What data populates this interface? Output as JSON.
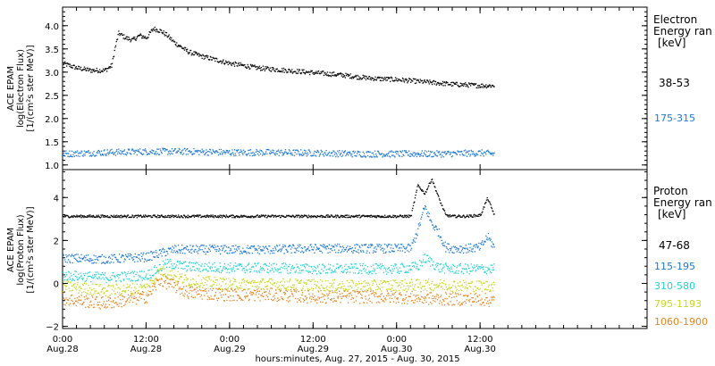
{
  "chart_data": [
    {
      "type": "scatter",
      "panel": "electron",
      "ylabel": "ACE EPAM\nlog(Electron Flux)\n[1/(cm^2 s ster MeV)]",
      "ylabel_lines": [
        "ACE EPAM",
        "log(Electron Flux)",
        "[1/(cm²s ster MeV)]"
      ],
      "ylim": [
        0.9,
        4.4
      ],
      "yticks": [
        1.0,
        1.5,
        2.0,
        2.5,
        3.0,
        3.5,
        4.0
      ],
      "ytick_labels": [
        "1.0",
        "1.5",
        "2.0",
        "2.5",
        "3.0",
        "3.5",
        "4.0"
      ],
      "legend_title": [
        "Electron",
        "Energy ran",
        "[keV]"
      ],
      "series": [
        {
          "name": "38-53",
          "color": "#000000",
          "x_hours": [
            0,
            2,
            4,
            6,
            7,
            7.5,
            8,
            9,
            10,
            11,
            12,
            13,
            14,
            15,
            16,
            18,
            20,
            24,
            28,
            32,
            36,
            40,
            44,
            48,
            52,
            56,
            60,
            62
          ],
          "values": [
            3.2,
            3.1,
            3.05,
            3.05,
            3.15,
            3.55,
            3.85,
            3.75,
            3.7,
            3.8,
            3.75,
            3.95,
            3.9,
            3.8,
            3.65,
            3.45,
            3.35,
            3.2,
            3.1,
            3.05,
            3.0,
            2.95,
            2.88,
            2.85,
            2.8,
            2.75,
            2.72,
            2.72
          ]
        },
        {
          "name": "175-315",
          "color": "#1e78d2",
          "x_hours": [
            0,
            6,
            12,
            18,
            24,
            30,
            36,
            42,
            48,
            54,
            60,
            62
          ],
          "values": [
            1.25,
            1.28,
            1.3,
            1.3,
            1.28,
            1.28,
            1.27,
            1.25,
            1.25,
            1.25,
            1.27,
            1.25
          ]
        }
      ]
    },
    {
      "type": "scatter",
      "panel": "proton",
      "ylabel": "ACE EPAM\nlog(Proton Flux)\n[1/(cm^2 s ster MeV)]",
      "ylabel_lines": [
        "ACE EPAM",
        "log(Proton Flux)",
        "[1/(cm²s ster MeV)]"
      ],
      "ylim": [
        -2.1,
        5.3
      ],
      "yticks": [
        -2,
        0,
        2,
        4
      ],
      "ytick_labels": [
        "−2",
        "0",
        "2",
        "4"
      ],
      "legend_title": [
        "Proton",
        "Energy ran",
        "[keV]"
      ],
      "series": [
        {
          "name": "47-68",
          "color": "#000000",
          "x_hours": [
            0,
            10,
            20,
            30,
            40,
            46,
            48,
            50,
            51,
            52,
            53,
            54,
            55,
            56,
            58,
            60,
            61,
            62
          ],
          "values": [
            3.15,
            3.15,
            3.15,
            3.15,
            3.15,
            3.15,
            3.15,
            3.15,
            4.6,
            4.2,
            4.9,
            4.0,
            3.2,
            3.15,
            3.15,
            3.2,
            4.0,
            3.2
          ]
        },
        {
          "name": "115-195",
          "color": "#1e78d2",
          "x_hours": [
            0,
            6,
            12,
            16,
            20,
            24,
            30,
            36,
            42,
            48,
            50,
            51,
            52,
            53,
            54,
            55,
            56,
            58,
            60,
            61,
            62
          ],
          "values": [
            1.2,
            1.15,
            1.25,
            1.6,
            1.6,
            1.6,
            1.6,
            1.65,
            1.65,
            1.65,
            1.65,
            2.5,
            3.6,
            2.8,
            2.4,
            1.7,
            1.65,
            1.65,
            1.7,
            2.2,
            1.7
          ]
        },
        {
          "name": "310-580",
          "color": "#22d4d0",
          "x_hours": [
            0,
            6,
            12,
            15,
            18,
            24,
            30,
            36,
            42,
            48,
            51,
            52,
            53,
            54,
            56,
            60,
            62
          ],
          "values": [
            0.4,
            0.3,
            0.4,
            0.95,
            0.8,
            0.75,
            0.75,
            0.7,
            0.7,
            0.7,
            0.8,
            1.2,
            1.0,
            0.75,
            0.7,
            0.7,
            0.7
          ]
        },
        {
          "name": "795-1193",
          "color": "#c8d81e",
          "x_hours": [
            0,
            6,
            12,
            14,
            18,
            24,
            30,
            36,
            42,
            48,
            54,
            60,
            62
          ],
          "values": [
            -0.1,
            -0.3,
            -0.2,
            0.6,
            0.15,
            0.0,
            0.0,
            -0.05,
            -0.1,
            -0.05,
            -0.05,
            -0.1,
            -0.1
          ]
        },
        {
          "name": "1060-1900",
          "color": "#e6841e",
          "x_hours": [
            0,
            6,
            12,
            14,
            18,
            24,
            30,
            36,
            42,
            48,
            54,
            60,
            62
          ],
          "values": [
            -0.7,
            -0.9,
            -0.6,
            0.2,
            -0.4,
            -0.5,
            -0.5,
            -0.6,
            -0.6,
            -0.6,
            -0.7,
            -0.7,
            -0.8
          ]
        }
      ]
    }
  ],
  "xaxis": {
    "xlim_hours": [
      0,
      84
    ],
    "ticks": [
      {
        "hour": 0,
        "time": "0:00",
        "date": "Aug.28"
      },
      {
        "hour": 12,
        "time": "12:00",
        "date": "Aug.28"
      },
      {
        "hour": 24,
        "time": "0:00",
        "date": "Aug.29"
      },
      {
        "hour": 36,
        "time": "12:00",
        "date": "Aug.29"
      },
      {
        "hour": 48,
        "time": "0:00",
        "date": "Aug.30"
      },
      {
        "hour": 60,
        "time": "12:00",
        "date": "Aug.30"
      }
    ],
    "xlabel": "hours:minutes, Aug. 27, 2015 - Aug. 30, 2015"
  }
}
